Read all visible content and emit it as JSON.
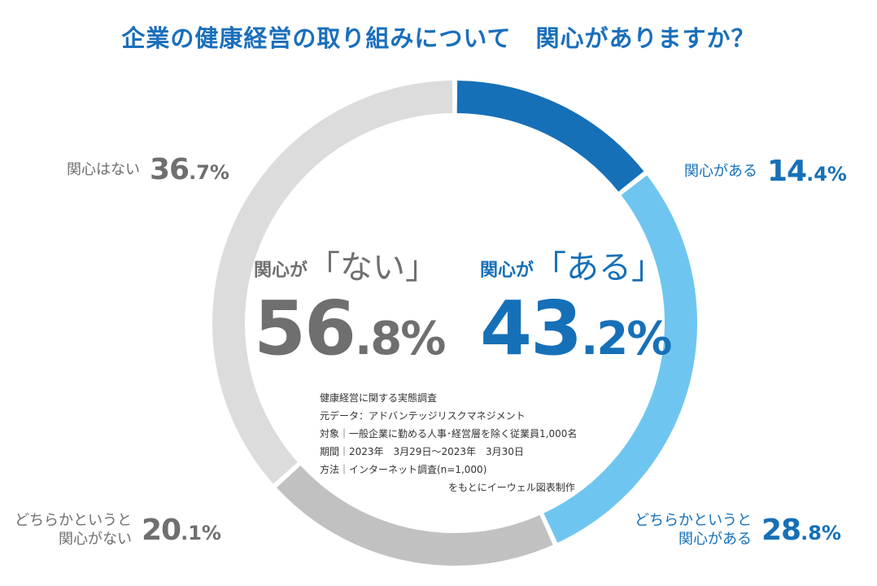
{
  "title": "企業の健康経営の取り組みについて　関心がありますか？",
  "chart_data": {
    "type": "pie",
    "title": "企業の健康経営の取り組みについて　関心がありますか？",
    "slices": [
      {
        "label": "関心がある",
        "value": 14.4,
        "color": "#1670b8"
      },
      {
        "label": "どちらかというと関心がある",
        "value": 28.8,
        "color": "#6ec6f0"
      },
      {
        "label": "どちらかというと関心がない",
        "value": 20.1,
        "color": "#c1c1c1"
      },
      {
        "label": "関心はない",
        "value": 36.7,
        "color": "#dcdcdc"
      }
    ]
  },
  "labels": {
    "interested": {
      "name": "関心がある",
      "int": "14",
      "dec": ".4%"
    },
    "somewhat_interested": {
      "name_line1": "どちらかというと",
      "name_line2": "関心がある",
      "int": "28",
      "dec": ".8%"
    },
    "somewhat_not": {
      "name_line1": "どちらかというと",
      "name_line2": "関心がない",
      "int": "20",
      "dec": ".1%"
    },
    "not_interested": {
      "name": "関心はない",
      "int": "36",
      "dec": ".7%"
    }
  },
  "summary": {
    "no": {
      "prefix": "関心が",
      "word": "「ない」",
      "int": "56",
      "dec": ".8%"
    },
    "yes": {
      "prefix": "関心が",
      "word": "「ある」",
      "int": "43",
      "dec": ".2%"
    }
  },
  "notes": {
    "line1": "健康経営に関する実態調査",
    "line2": "元データ：アドバンテッジリスクマネジメント",
    "line3": "対象｜一般企業に勤める人事･経営層を除く従業員1,000名",
    "line4": "期間｜2023年　3月29日～2023年　3月30日",
    "line5": "方法｜インターネット調査(n=1,000)",
    "credit": "をもとにイーウェル図表制作"
  },
  "colors": {
    "accent_blue": "#1670b8",
    "light_blue": "#6ec6f0",
    "gray_text": "#6f6f6f",
    "title_blue": "#1a6fbb"
  }
}
